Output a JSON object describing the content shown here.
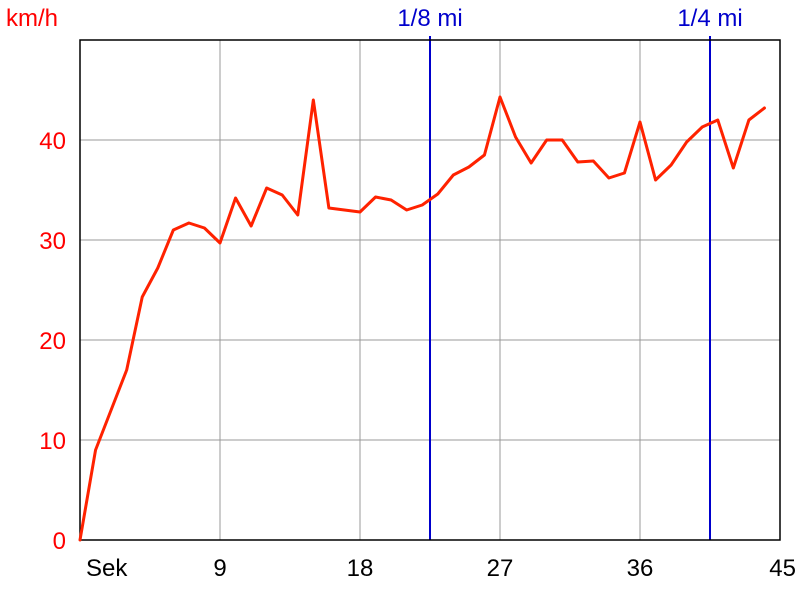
{
  "chart_data": {
    "type": "line",
    "unit_label": "km/h",
    "x_unit_label": "Sek",
    "xlim": [
      0,
      45
    ],
    "ylim": [
      0,
      50
    ],
    "x_ticks": [
      9,
      18,
      27,
      36,
      45
    ],
    "y_ticks": [
      0,
      10,
      20,
      30,
      40
    ],
    "grid": true,
    "series": [
      {
        "color": "#ff2200",
        "x": [
          0,
          1,
          2,
          3,
          4,
          5,
          6,
          7,
          8,
          9,
          10,
          11,
          12,
          13,
          14,
          15,
          16,
          17,
          18,
          19,
          20,
          21,
          22,
          23,
          24,
          25,
          26,
          27,
          28,
          29,
          30,
          31,
          32,
          33,
          34,
          35,
          36,
          37,
          38,
          39,
          40,
          41,
          42,
          43,
          44
        ],
        "y": [
          0,
          9,
          13,
          17,
          24.3,
          27.2,
          31,
          31.7,
          31.2,
          29.7,
          34.2,
          31.4,
          35.2,
          34.5,
          32.5,
          44,
          33.2,
          33,
          32.8,
          34.3,
          34,
          33,
          33.5,
          34.6,
          36.5,
          37.3,
          38.5,
          44.3,
          40.3,
          37.7,
          40,
          40,
          37.8,
          37.9,
          36.2,
          36.7,
          41.8,
          36,
          37.5,
          39.8,
          41.3,
          42,
          37.2,
          42,
          43.2
        ]
      }
    ],
    "markers": [
      {
        "label": "1/8 mi",
        "x": 22.5,
        "color": "#0000cc"
      },
      {
        "label": "1/4 mi",
        "x": 40.5,
        "color": "#0000cc"
      }
    ]
  },
  "colors": {
    "line": "#ff2200",
    "y_labels": "#ff0000",
    "x_labels": "#000000",
    "grid": "#999999",
    "axis": "#000000",
    "marker": "#0000cc"
  }
}
